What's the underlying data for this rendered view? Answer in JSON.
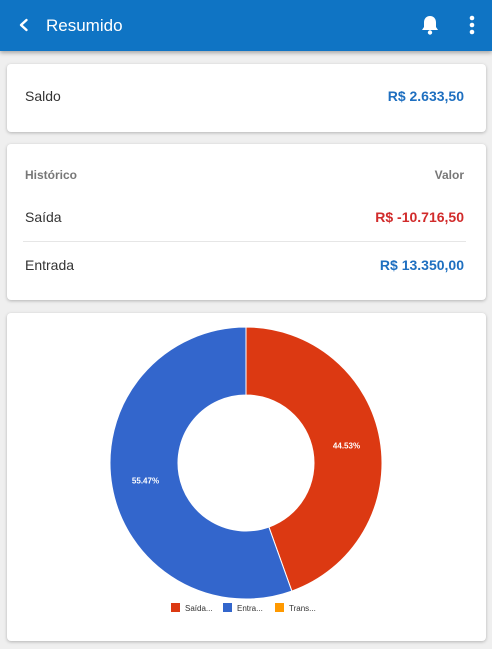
{
  "header": {
    "title": "Resumido",
    "back_icon": "chevron-left-icon",
    "bell_icon": "bell-icon",
    "more_icon": "more-vertical-icon"
  },
  "saldo": {
    "label": "Saldo",
    "value": "R$ 2.633,50"
  },
  "historico": {
    "header_left": "Histórico",
    "header_right": "Valor",
    "rows": [
      {
        "label": "Saída",
        "value": "R$ -10.716,50"
      },
      {
        "label": "Entrada",
        "value": "R$ 13.350,00"
      }
    ]
  },
  "colors": {
    "appbar": "#0f74c4",
    "saida": "#dc3912",
    "entrada": "#3366cc",
    "transferencia": "#ff9900"
  },
  "chart_data": {
    "type": "pie",
    "donut": true,
    "legend_position": "bottom",
    "slices": [
      {
        "name": "Saída...",
        "value": 44.53,
        "label": "44.53%",
        "color": "#dc3912"
      },
      {
        "name": "Entra...",
        "value": 55.47,
        "label": "55.47%",
        "color": "#3366cc"
      },
      {
        "name": "Trans...",
        "value": 0,
        "label": "",
        "color": "#ff9900"
      }
    ]
  }
}
